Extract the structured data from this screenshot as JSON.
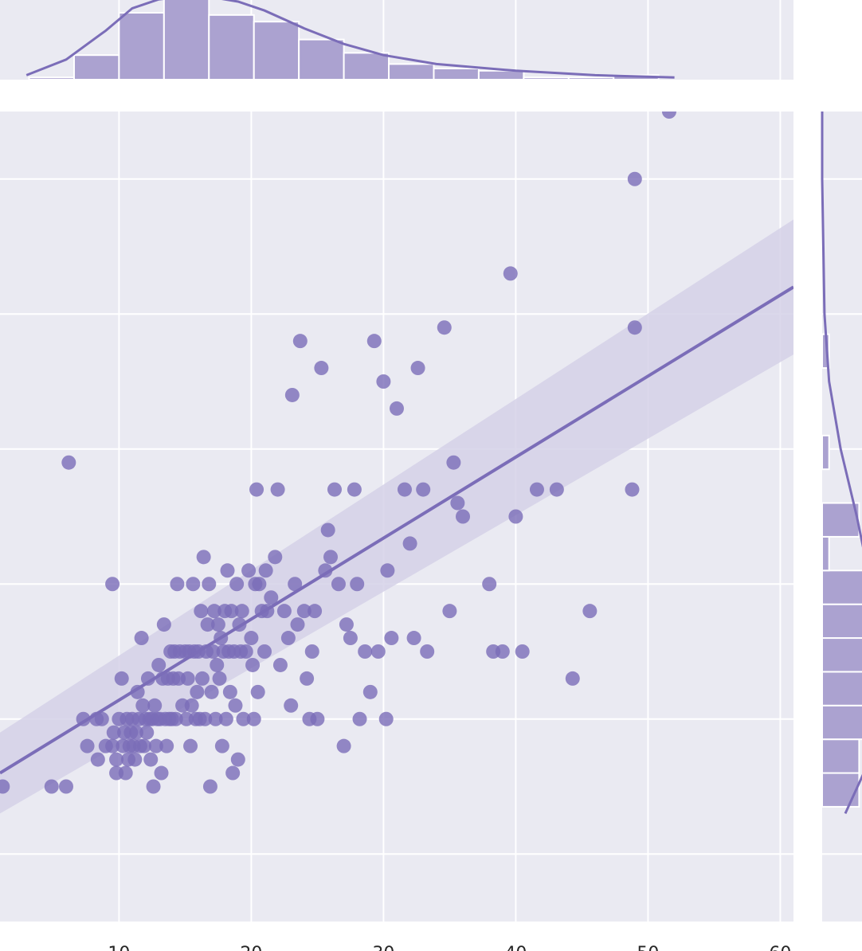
{
  "colors": {
    "panel_bg": "#eaeaf2",
    "grid": "#ffffff",
    "accent": "#7b6db8",
    "fill": "#aba2d0",
    "band": "#d5d1e8"
  },
  "chart_data": [
    {
      "type": "scatter",
      "role": "joint",
      "xlim": [
        1,
        61
      ],
      "ylim": [
        0.5,
        6.5
      ],
      "grid": true,
      "x_ticks": [
        10,
        20,
        30,
        40,
        50,
        60
      ],
      "x_tick_labels": [
        "10",
        "20",
        "30",
        "40",
        "50",
        "60"
      ],
      "y_gridlines": [
        1,
        2,
        3,
        4,
        5,
        6
      ],
      "points": [
        [
          1.2,
          1.5
        ],
        [
          4.9,
          1.5
        ],
        [
          6.0,
          1.5
        ],
        [
          6.2,
          3.9
        ],
        [
          7.3,
          2.0
        ],
        [
          7.6,
          1.8
        ],
        [
          8.3,
          2.0
        ],
        [
          8.4,
          1.7
        ],
        [
          8.7,
          2.0
        ],
        [
          9.0,
          1.8
        ],
        [
          9.5,
          1.8
        ],
        [
          9.5,
          3.0
        ],
        [
          9.6,
          1.9
        ],
        [
          9.8,
          1.7
        ],
        [
          9.8,
          1.6
        ],
        [
          10.0,
          2.0
        ],
        [
          10.2,
          2.3
        ],
        [
          10.3,
          1.8
        ],
        [
          10.4,
          1.9
        ],
        [
          10.5,
          1.6
        ],
        [
          10.6,
          2.0
        ],
        [
          10.7,
          1.7
        ],
        [
          10.8,
          1.8
        ],
        [
          10.9,
          1.9
        ],
        [
          11.0,
          2.0
        ],
        [
          11.1,
          1.8
        ],
        [
          11.2,
          1.7
        ],
        [
          11.3,
          1.9
        ],
        [
          11.4,
          2.2
        ],
        [
          11.5,
          2.0
        ],
        [
          11.6,
          1.8
        ],
        [
          11.7,
          2.6
        ],
        [
          11.8,
          2.1
        ],
        [
          11.9,
          1.8
        ],
        [
          12.0,
          2.0
        ],
        [
          12.1,
          1.9
        ],
        [
          12.2,
          2.3
        ],
        [
          12.3,
          2.0
        ],
        [
          12.4,
          1.7
        ],
        [
          12.5,
          2.0
        ],
        [
          12.6,
          1.5
        ],
        [
          12.7,
          2.1
        ],
        [
          12.8,
          1.8
        ],
        [
          12.9,
          2.0
        ],
        [
          13.0,
          2.4
        ],
        [
          13.1,
          2.0
        ],
        [
          13.2,
          1.6
        ],
        [
          13.3,
          2.3
        ],
        [
          13.4,
          2.7
        ],
        [
          13.5,
          2.0
        ],
        [
          13.6,
          1.8
        ],
        [
          13.7,
          2.3
        ],
        [
          13.8,
          2.0
        ],
        [
          13.9,
          2.5
        ],
        [
          14.0,
          2.0
        ],
        [
          14.1,
          2.3
        ],
        [
          14.2,
          2.5
        ],
        [
          14.3,
          2.0
        ],
        [
          14.4,
          3.0
        ],
        [
          14.5,
          2.3
        ],
        [
          14.6,
          2.5
        ],
        [
          14.8,
          2.1
        ],
        [
          15.0,
          2.5
        ],
        [
          15.1,
          2.0
        ],
        [
          15.2,
          2.3
        ],
        [
          15.3,
          2.5
        ],
        [
          15.4,
          1.8
        ],
        [
          15.5,
          2.1
        ],
        [
          15.6,
          3.0
        ],
        [
          15.7,
          2.5
        ],
        [
          15.8,
          2.0
        ],
        [
          15.9,
          2.2
        ],
        [
          16.0,
          2.5
        ],
        [
          16.1,
          2.0
        ],
        [
          16.2,
          2.8
        ],
        [
          16.3,
          2.3
        ],
        [
          16.4,
          3.2
        ],
        [
          16.5,
          2.0
        ],
        [
          16.6,
          2.5
        ],
        [
          16.7,
          2.7
        ],
        [
          16.8,
          3.0
        ],
        [
          16.9,
          1.5
        ],
        [
          17.0,
          2.2
        ],
        [
          17.1,
          2.5
        ],
        [
          17.2,
          2.8
        ],
        [
          17.3,
          2.0
        ],
        [
          17.4,
          2.4
        ],
        [
          17.5,
          2.7
        ],
        [
          17.6,
          2.3
        ],
        [
          17.7,
          2.6
        ],
        [
          17.8,
          1.8
        ],
        [
          17.9,
          2.5
        ],
        [
          18.0,
          2.8
        ],
        [
          18.1,
          2.0
        ],
        [
          18.2,
          3.1
        ],
        [
          18.3,
          2.5
        ],
        [
          18.4,
          2.2
        ],
        [
          18.5,
          2.8
        ],
        [
          18.6,
          1.6
        ],
        [
          18.7,
          2.5
        ],
        [
          18.8,
          2.1
        ],
        [
          18.9,
          3.0
        ],
        [
          19.0,
          1.7
        ],
        [
          19.1,
          2.7
        ],
        [
          19.2,
          2.5
        ],
        [
          19.3,
          2.8
        ],
        [
          19.4,
          2.0
        ],
        [
          19.6,
          2.5
        ],
        [
          19.8,
          3.1
        ],
        [
          20.0,
          2.6
        ],
        [
          20.1,
          2.4
        ],
        [
          20.2,
          2.0
        ],
        [
          20.3,
          3.0
        ],
        [
          20.4,
          3.7
        ],
        [
          20.5,
          2.2
        ],
        [
          20.6,
          3.0
        ],
        [
          20.8,
          2.8
        ],
        [
          21.0,
          2.5
        ],
        [
          21.1,
          3.1
        ],
        [
          21.2,
          2.8
        ],
        [
          21.5,
          2.9
        ],
        [
          21.8,
          3.2
        ],
        [
          22.0,
          3.7
        ],
        [
          22.2,
          2.4
        ],
        [
          22.5,
          2.8
        ],
        [
          22.8,
          2.6
        ],
        [
          23.0,
          2.1
        ],
        [
          23.1,
          4.4
        ],
        [
          23.3,
          3.0
        ],
        [
          23.5,
          2.7
        ],
        [
          23.7,
          4.8
        ],
        [
          24.0,
          2.8
        ],
        [
          24.2,
          2.3
        ],
        [
          24.4,
          2.0
        ],
        [
          24.6,
          2.5
        ],
        [
          24.8,
          2.8
        ],
        [
          25.0,
          2.0
        ],
        [
          25.3,
          4.6
        ],
        [
          25.6,
          3.1
        ],
        [
          25.8,
          3.4
        ],
        [
          26.0,
          3.2
        ],
        [
          26.3,
          3.7
        ],
        [
          26.6,
          3.0
        ],
        [
          27.0,
          1.8
        ],
        [
          27.2,
          2.7
        ],
        [
          27.5,
          2.6
        ],
        [
          27.8,
          3.7
        ],
        [
          28.0,
          3.0
        ],
        [
          28.2,
          2.0
        ],
        [
          28.6,
          2.5
        ],
        [
          29.0,
          2.2
        ],
        [
          29.3,
          4.8
        ],
        [
          29.6,
          2.5
        ],
        [
          30.0,
          4.5
        ],
        [
          30.2,
          2.0
        ],
        [
          30.3,
          3.1
        ],
        [
          30.6,
          2.6
        ],
        [
          31.0,
          4.3
        ],
        [
          31.6,
          3.7
        ],
        [
          32.0,
          3.3
        ],
        [
          32.3,
          2.6
        ],
        [
          32.6,
          4.6
        ],
        [
          33.0,
          3.7
        ],
        [
          33.3,
          2.5
        ],
        [
          34.6,
          4.9
        ],
        [
          35.0,
          2.8
        ],
        [
          35.3,
          3.9
        ],
        [
          35.6,
          3.6
        ],
        [
          36.0,
          3.5
        ],
        [
          38.0,
          3.0
        ],
        [
          38.3,
          2.5
        ],
        [
          39.0,
          2.5
        ],
        [
          39.6,
          5.3
        ],
        [
          40.0,
          3.5
        ],
        [
          40.5,
          2.5
        ],
        [
          41.6,
          3.7
        ],
        [
          43.1,
          3.7
        ],
        [
          44.3,
          2.3
        ],
        [
          45.6,
          2.8
        ],
        [
          48.8,
          3.7
        ],
        [
          49.0,
          4.9
        ],
        [
          49.0,
          6.0
        ],
        [
          51.6,
          6.5
        ]
      ],
      "regression": {
        "line": [
          [
            1,
            1.6
          ],
          [
            61,
            5.2
          ]
        ],
        "ci_upper": [
          [
            1,
            1.9
          ],
          [
            61,
            5.7
          ]
        ],
        "ci_lower": [
          [
            1,
            1.3
          ],
          [
            61,
            4.7
          ]
        ]
      }
    },
    {
      "type": "bar",
      "role": "x-marginal-histogram",
      "bin_edges": [
        3.2,
        6.6,
        10.0,
        13.4,
        16.8,
        20.2,
        23.6,
        27.0,
        30.4,
        33.8,
        37.2,
        40.6,
        44.0,
        47.4,
        50.8
      ],
      "counts": [
        1,
        11,
        30,
        38,
        29,
        26,
        18,
        12,
        7,
        5,
        4,
        1,
        1,
        2
      ],
      "kde": [
        [
          3.0,
          2
        ],
        [
          6.0,
          9
        ],
        [
          9.0,
          22
        ],
        [
          11.0,
          32
        ],
        [
          13.0,
          36
        ],
        [
          16.0,
          38
        ],
        [
          19.0,
          35
        ],
        [
          21.0,
          31
        ],
        [
          24.0,
          23
        ],
        [
          27.0,
          16
        ],
        [
          30.0,
          11
        ],
        [
          34.0,
          7
        ],
        [
          40.0,
          4
        ],
        [
          46.0,
          2
        ],
        [
          52.0,
          1
        ]
      ]
    },
    {
      "type": "bar",
      "role": "y-marginal-histogram",
      "orientation": "horizontal",
      "bin_edges": [
        1.35,
        1.6,
        1.85,
        2.1,
        2.35,
        2.6,
        2.85,
        3.1,
        3.35,
        3.6,
        3.85,
        4.1,
        4.35,
        4.6,
        4.85,
        5.1
      ],
      "counts": [
        32,
        32,
        38,
        36,
        36,
        36,
        36,
        6,
        32,
        0,
        6,
        0,
        0,
        6,
        0
      ],
      "kde": [
        [
          1.3,
          20
        ],
        [
          1.6,
          36
        ],
        [
          2.0,
          44
        ],
        [
          2.5,
          46
        ],
        [
          3.0,
          42
        ],
        [
          3.5,
          30
        ],
        [
          4.0,
          16
        ],
        [
          4.5,
          6
        ],
        [
          5.0,
          2
        ],
        [
          5.5,
          1
        ],
        [
          6.0,
          0
        ],
        [
          6.5,
          0
        ]
      ]
    }
  ]
}
